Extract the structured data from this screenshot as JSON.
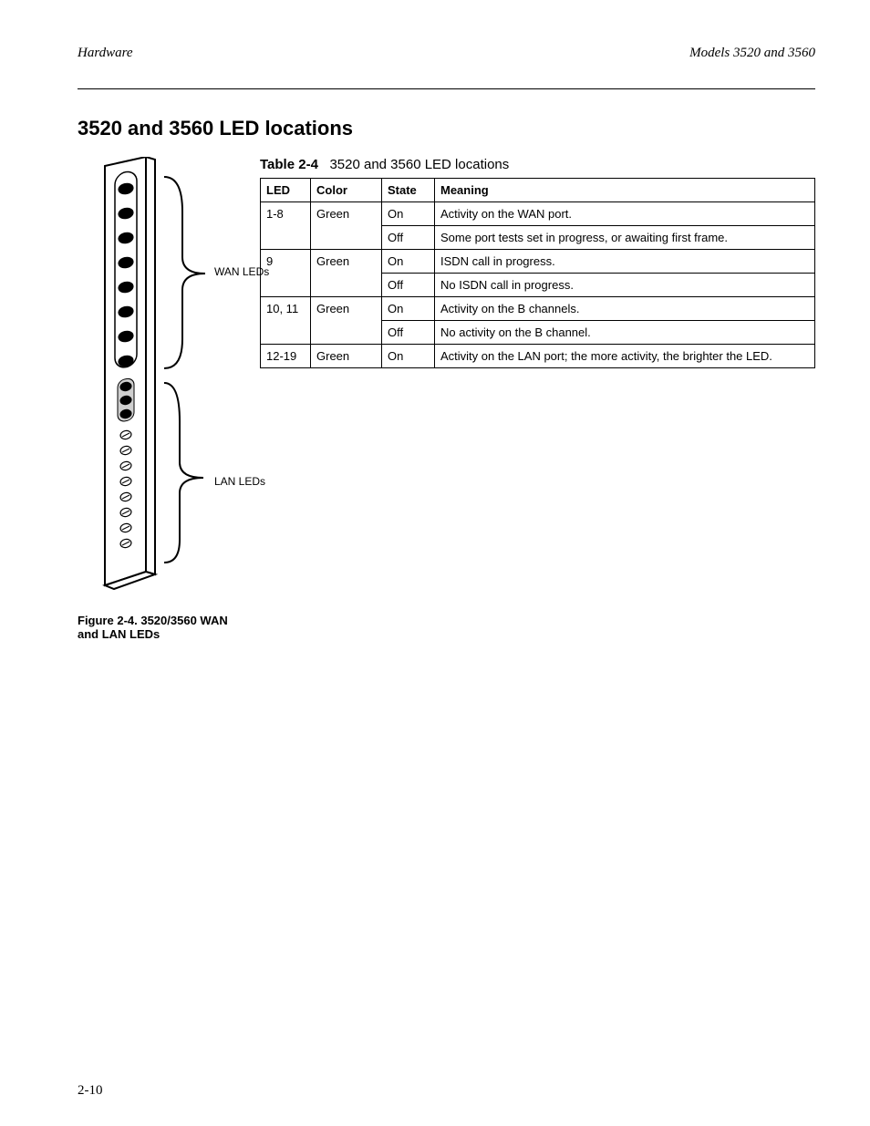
{
  "header": {
    "left": "Hardware",
    "right": "Models 3520 and 3560"
  },
  "section_title": "3520 and 3560 LED locations",
  "table": {
    "caption_label": "Table 2-4",
    "caption_text": "3520 and 3560 LED locations",
    "columns": [
      "LED",
      "Color",
      "State",
      "Meaning"
    ],
    "rows": [
      {
        "led": "1-8",
        "color": "Green",
        "cells": [
          [
            "On",
            "Activity on the WAN port."
          ],
          [
            "Off",
            "Some port tests set in progress, or awaiting first frame."
          ]
        ]
      },
      {
        "led": "9",
        "color": "Green",
        "cells": [
          [
            "On",
            "ISDN call in progress."
          ],
          [
            "Off",
            "No ISDN call in progress."
          ]
        ]
      },
      {
        "led": "10, 11",
        "color": "Green",
        "cells": [
          [
            "On",
            "Activity on the B channels."
          ],
          [
            "Off",
            "No activity on the B channel."
          ]
        ]
      },
      {
        "led": "12-19",
        "color": "Green",
        "cells": [
          [
            "On",
            "Activity on the LAN port; the more activity, the brighter the LED."
          ]
        ]
      }
    ]
  },
  "figure": {
    "label_top": "WAN LEDs",
    "label_bot": "LAN LEDs",
    "caption": "Figure 2-4.  3520/3560 WAN and LAN LEDs"
  },
  "page_number": "2-10"
}
